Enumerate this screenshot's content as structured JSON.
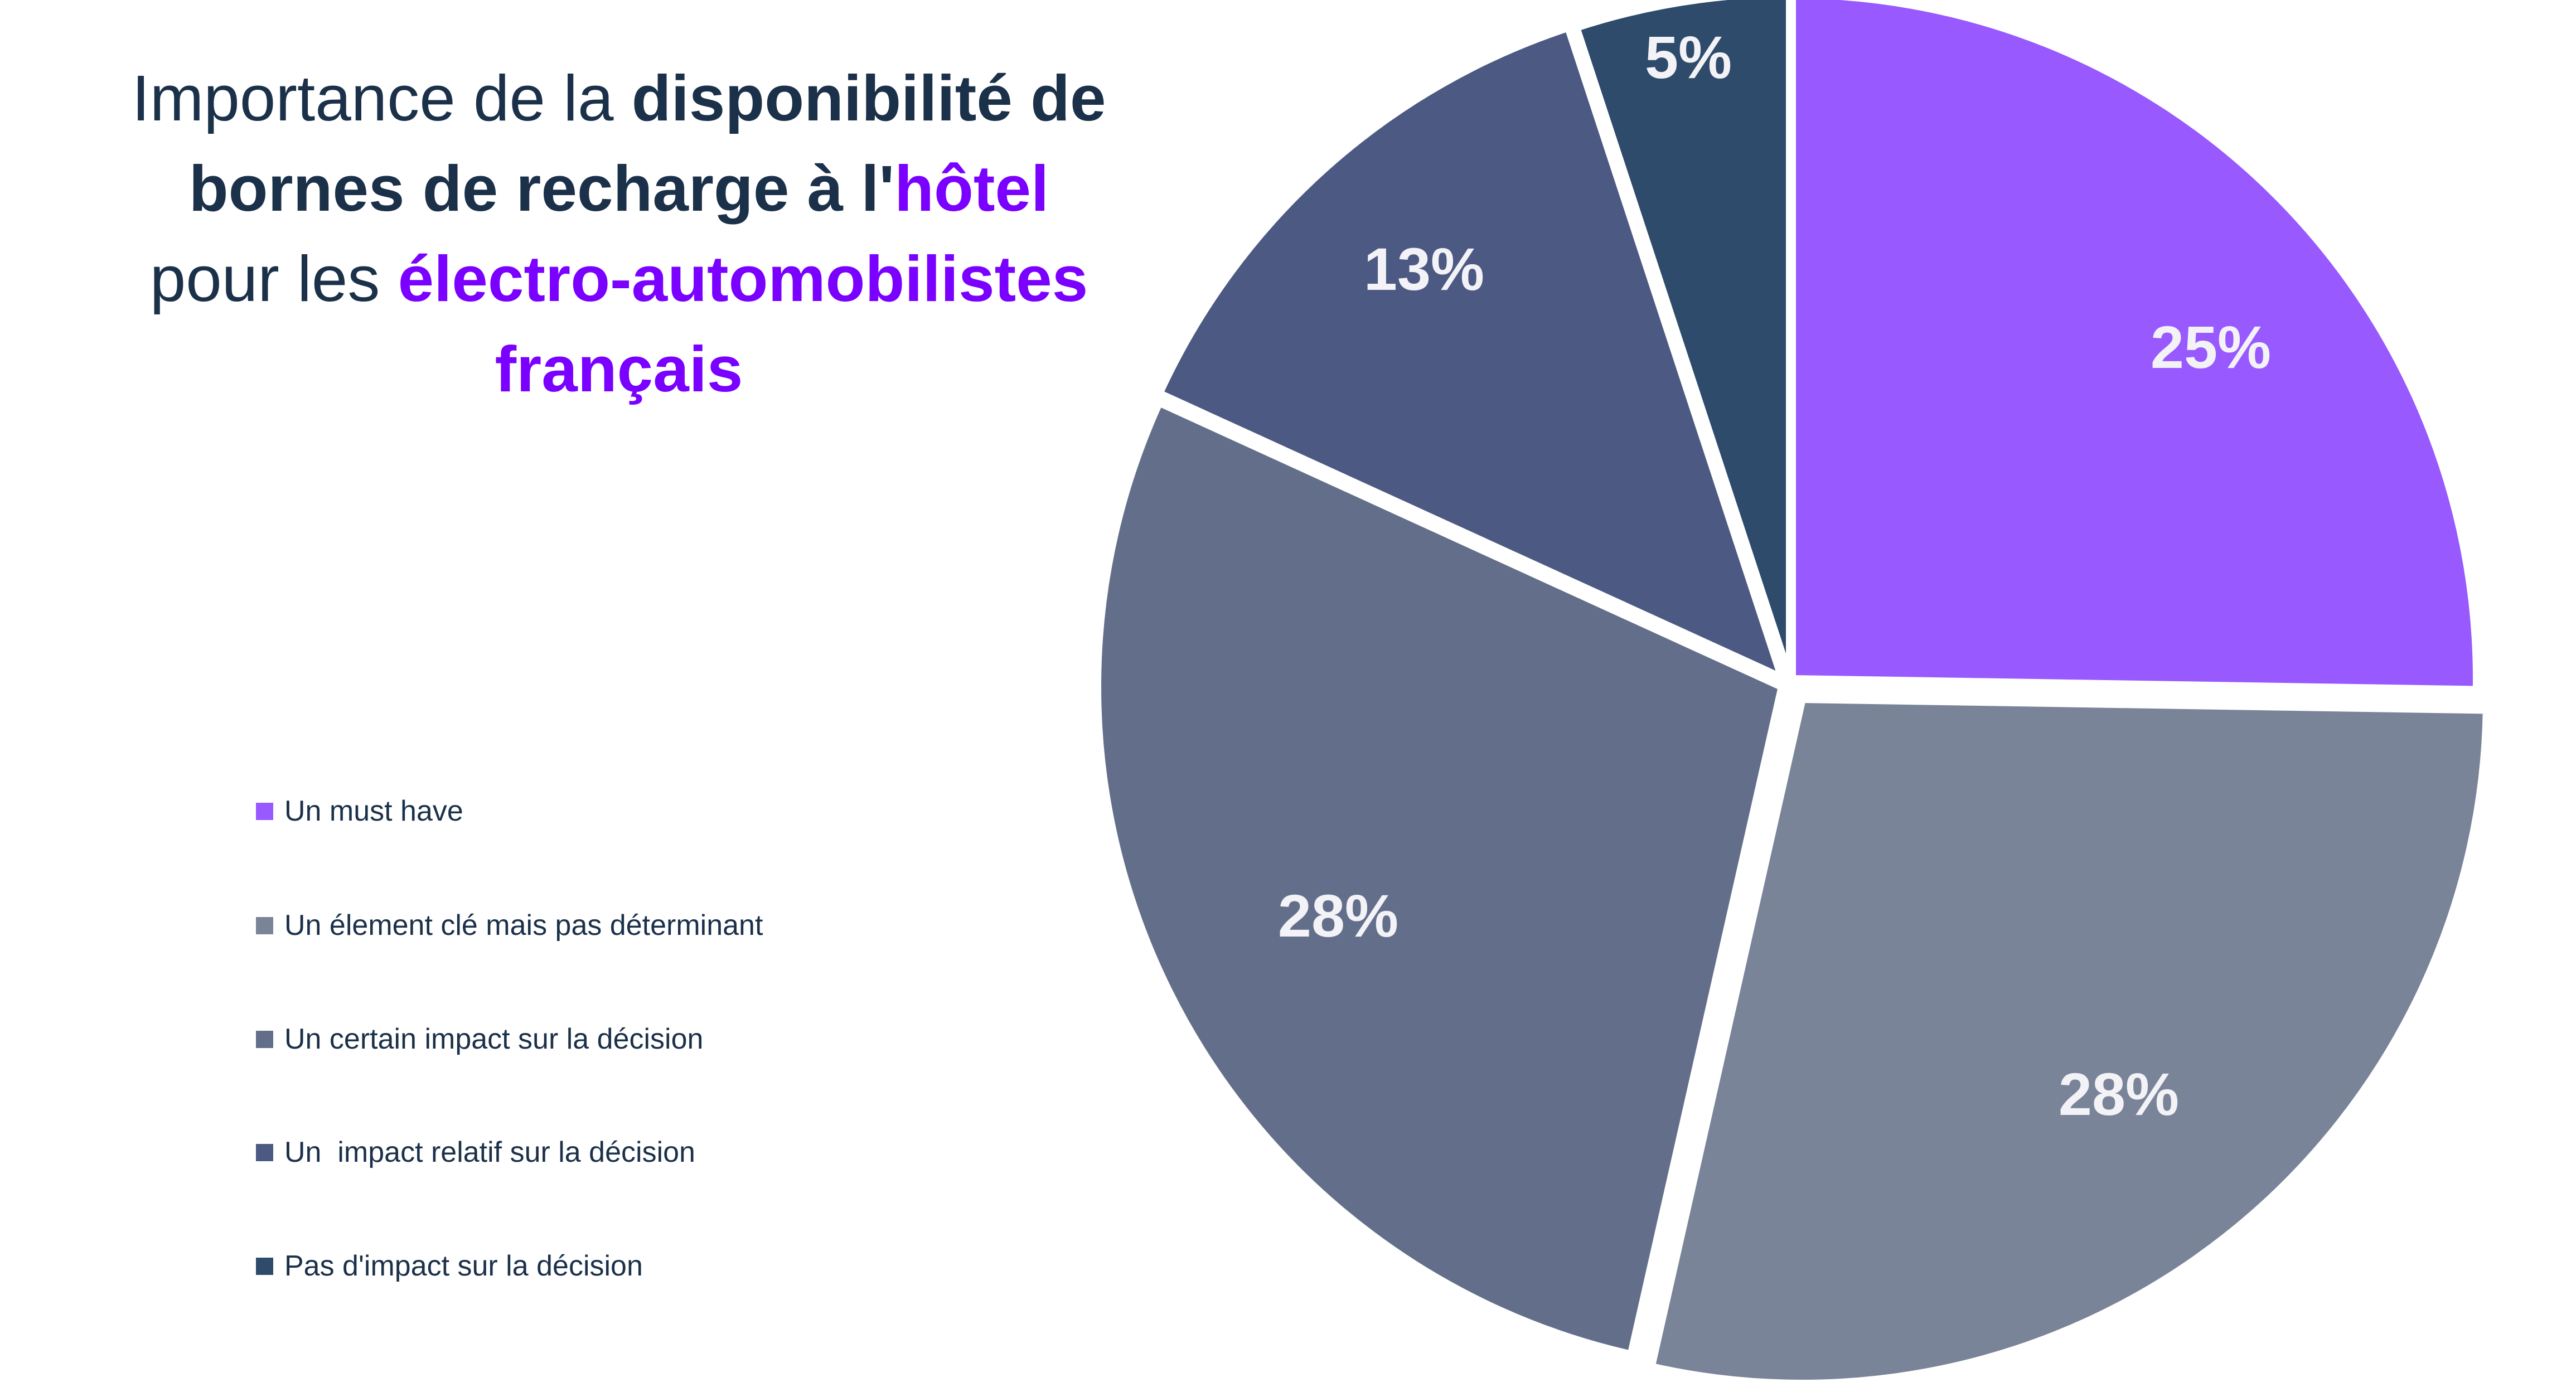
{
  "title": {
    "parts": [
      {
        "text": "Importance de la ",
        "style": "regular"
      },
      {
        "text": "disponibilité de",
        "style": "bold"
      },
      {
        "text": "bornes de recharge à l'",
        "style": "bold"
      },
      {
        "text": "hôtel",
        "style": "purple"
      },
      {
        "text": "pour les ",
        "style": "regular"
      },
      {
        "text": "électro-automobilistes",
        "style": "purple"
      },
      {
        "text": "français",
        "style": "purple"
      }
    ]
  },
  "chart_data": {
    "type": "pie",
    "title": "Importance de la disponibilité de bornes de recharge à l'hôtel pour les électro-automobilistes français",
    "start": "12 o'clock, clockwise",
    "legend_position": "left",
    "categories": [
      "Un must have",
      "Un élement clé mais pas déterminant",
      "Un certain impact sur la décision",
      "Un  impact relatif sur la décision",
      "Pas d'impact sur la décision"
    ],
    "values": [
      25,
      28,
      28,
      13,
      5
    ],
    "labels": [
      "25%",
      "28%",
      "28%",
      "13%",
      "5%"
    ],
    "colors": [
      "#9859FF",
      "#7A8499",
      "#636F8A",
      "#4C5982",
      "#2E4B6B"
    ]
  }
}
